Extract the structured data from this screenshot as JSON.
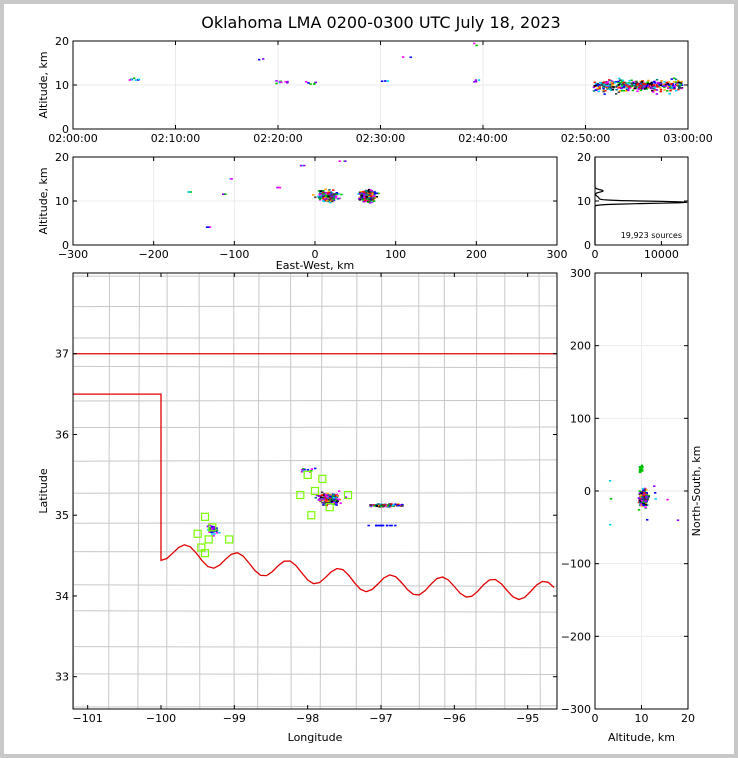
{
  "title": "Oklahoma LMA 0200-0300 UTC July 18, 2023",
  "chart_data": [
    {
      "id": "time_height",
      "type": "scatter",
      "ylabel": "Altitude, km",
      "ylim": [
        0,
        20
      ],
      "yticks": [
        0,
        10,
        20
      ],
      "xlim_min": [
        0,
        60
      ],
      "xticks": [
        "02:00:00",
        "02:10:00",
        "02:20:00",
        "02:30:00",
        "02:40:00",
        "02:50:00",
        "03:00:00"
      ]
    },
    {
      "id": "ew_height",
      "type": "scatter",
      "xlabel": "East-West, km",
      "ylabel": "Altitude, km",
      "xlim": [
        -300,
        300
      ],
      "ylim": [
        0,
        20
      ],
      "xticks": [
        -300,
        -200,
        -100,
        0,
        100,
        200,
        300
      ],
      "yticks": [
        0,
        10,
        20
      ]
    },
    {
      "id": "altitude_histogram",
      "type": "line",
      "xlim": [
        0,
        14000
      ],
      "ylim": [
        0,
        20
      ],
      "xticks": [
        0,
        10000
      ],
      "yticks": [
        0,
        10,
        20
      ],
      "annotation": "19,923 sources",
      "peak_altitude_km": 9.7,
      "peak_count": 13800
    },
    {
      "id": "plan_view",
      "type": "scatter",
      "xlabel": "Longitude",
      "ylabel": "Latitude",
      "xlim": [
        -101.2,
        -94.6
      ],
      "ylim": [
        32.6,
        38.0
      ],
      "xticks": [
        -101,
        -100,
        -99,
        -98,
        -97,
        -96,
        -95
      ],
      "yticks": [
        33,
        34,
        35,
        36,
        37
      ],
      "stations": [
        {
          "lon": -98.0,
          "lat": 35.5
        },
        {
          "lon": -97.8,
          "lat": 35.45
        },
        {
          "lon": -98.1,
          "lat": 35.25
        },
        {
          "lon": -97.9,
          "lat": 35.3
        },
        {
          "lon": -97.45,
          "lat": 35.25
        },
        {
          "lon": -97.7,
          "lat": 35.1
        },
        {
          "lon": -97.95,
          "lat": 35.0
        },
        {
          "lon": -99.4,
          "lat": 34.98
        },
        {
          "lon": -99.3,
          "lat": 34.85
        },
        {
          "lon": -99.5,
          "lat": 34.77
        },
        {
          "lon": -99.35,
          "lat": 34.7
        },
        {
          "lon": -99.07,
          "lat": 34.7
        },
        {
          "lon": -99.45,
          "lat": 34.6
        },
        {
          "lon": -99.4,
          "lat": 34.53
        }
      ]
    },
    {
      "id": "ns_height",
      "type": "scatter",
      "xlabel": "Altitude, km",
      "ylabel": "North-South, km",
      "xlim": [
        0,
        20
      ],
      "ylim": [
        -300,
        300
      ],
      "xticks": [
        0,
        10,
        20
      ],
      "yticks": [
        -300,
        -200,
        -100,
        0,
        100,
        200,
        300
      ]
    }
  ]
}
